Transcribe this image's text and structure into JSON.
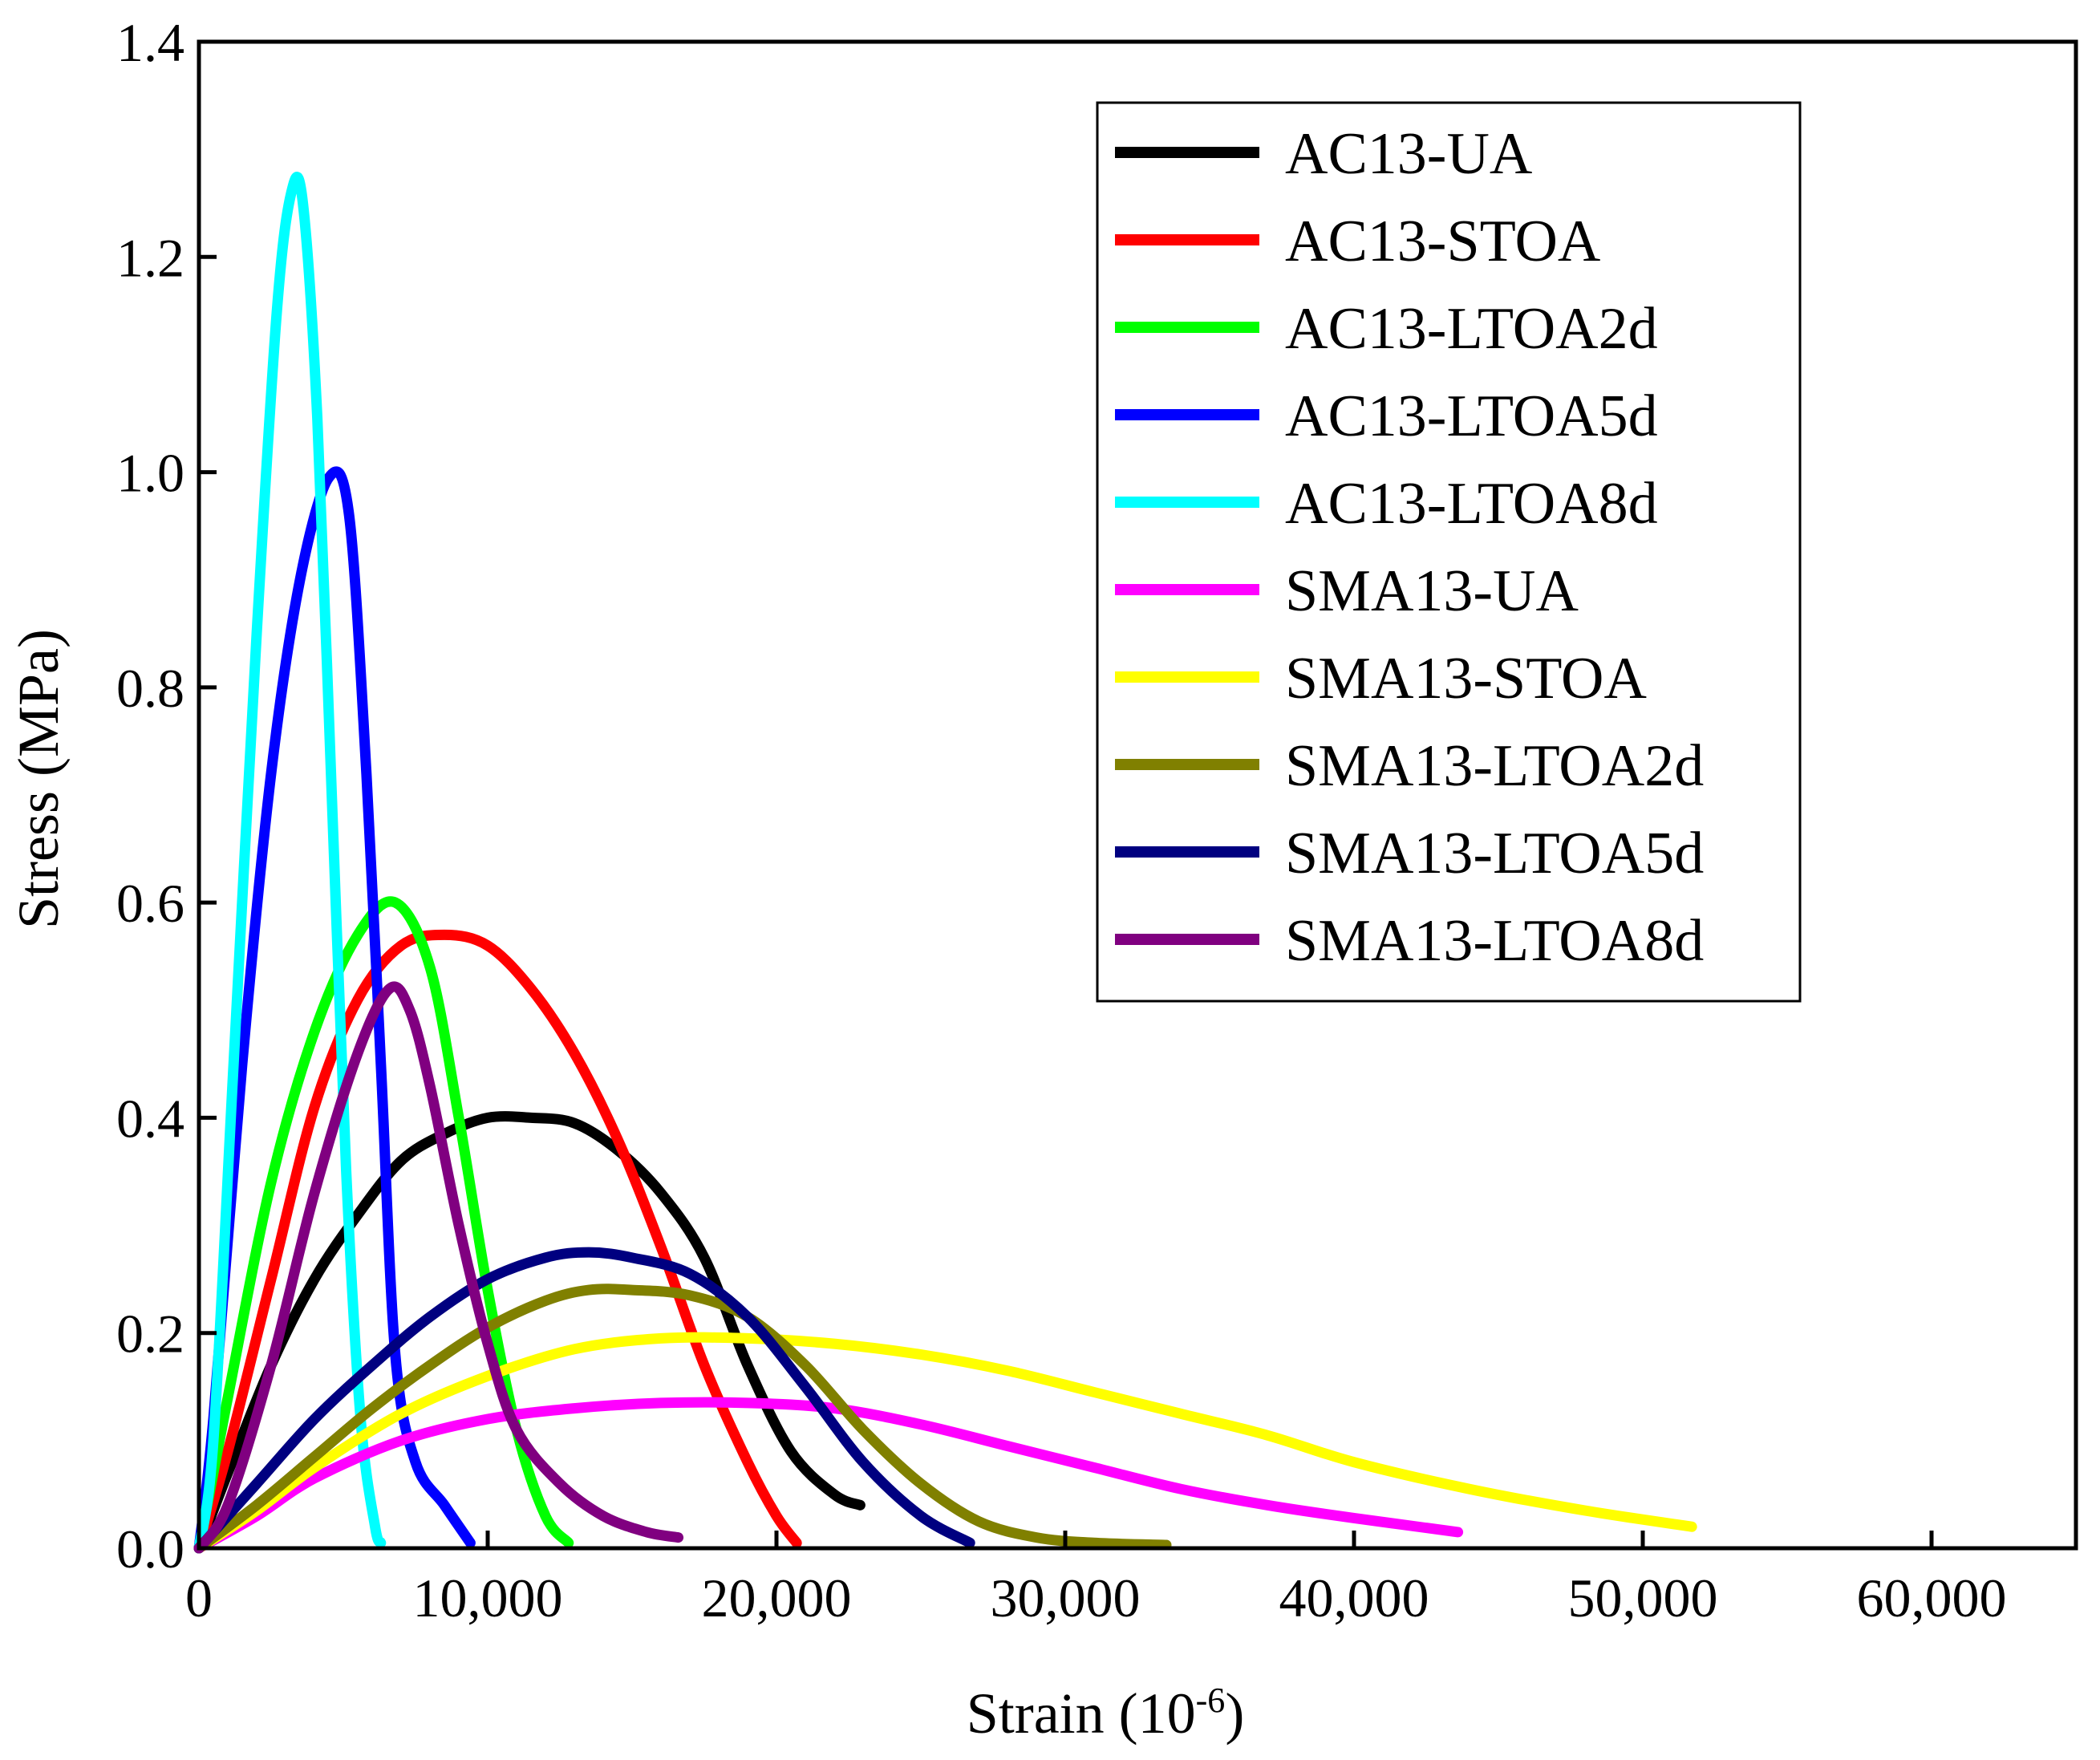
{
  "chart_data": {
    "type": "line",
    "title": "",
    "xlabel": "Strain (10",
    "xlabel_sup": "-6",
    "xlabel_end": ")",
    "ylabel": "Stress (MPa)",
    "xlim": [
      0,
      65000
    ],
    "ylim": [
      0,
      1.4
    ],
    "xticks": [
      0,
      10000,
      20000,
      30000,
      40000,
      50000,
      60000
    ],
    "xtick_labels": [
      "0",
      "10,000",
      "20,000",
      "30,000",
      "40,000",
      "50,000",
      "60,000"
    ],
    "yticks": [
      0,
      0.2,
      0.4,
      0.6,
      0.8,
      1.0,
      1.2,
      1.4
    ],
    "ytick_labels": [
      "0.0",
      "0.2",
      "0.4",
      "0.6",
      "0.8",
      "1.0",
      "1.2",
      "1.4"
    ],
    "grid": false,
    "legend_position": "top-right",
    "series": [
      {
        "name": "AC13-UA",
        "color": "#000000",
        "x": [
          0,
          1000,
          2500,
          4000,
          5500,
          7000,
          8500,
          10000,
          11500,
          13000,
          14500,
          16000,
          17500,
          19000,
          20500,
          22000,
          22900
        ],
        "y": [
          0,
          0.07,
          0.17,
          0.25,
          0.31,
          0.36,
          0.385,
          0.4,
          0.4,
          0.395,
          0.37,
          0.33,
          0.27,
          0.17,
          0.09,
          0.05,
          0.04
        ]
      },
      {
        "name": "AC13-STOA",
        "color": "#ff0000",
        "x": [
          0,
          1000,
          2500,
          4000,
          5500,
          7000,
          8500,
          10000,
          11500,
          13000,
          14500,
          16000,
          17500,
          19000,
          20000,
          20700
        ],
        "y": [
          0,
          0.09,
          0.25,
          0.41,
          0.51,
          0.56,
          0.57,
          0.56,
          0.52,
          0.46,
          0.38,
          0.28,
          0.17,
          0.08,
          0.03,
          0.005
        ]
      },
      {
        "name": "AC13-LTOA2d",
        "color": "#00ff00",
        "x": [
          0,
          1000,
          2500,
          4000,
          5500,
          6800,
          8000,
          9000,
          10000,
          11000,
          12000,
          12800
        ],
        "y": [
          0,
          0.14,
          0.34,
          0.48,
          0.57,
          0.6,
          0.54,
          0.4,
          0.24,
          0.11,
          0.03,
          0.005
        ]
      },
      {
        "name": "AC13-LTOA5d",
        "color": "#0000ff",
        "x": [
          0,
          500,
          1500,
          2500,
          3500,
          4500,
          5200,
          5800,
          6300,
          6800,
          7500,
          8500,
          9400
        ],
        "y": [
          0,
          0.12,
          0.45,
          0.72,
          0.9,
          0.995,
          0.96,
          0.72,
          0.45,
          0.18,
          0.08,
          0.04,
          0.005
        ]
      },
      {
        "name": "AC13-LTOA8d",
        "color": "#00ffff",
        "x": [
          0,
          500,
          1200,
          2000,
          2700,
          3200,
          3600,
          4100,
          4600,
          5100,
          5600,
          6100,
          6300
        ],
        "y": [
          0,
          0.1,
          0.45,
          0.85,
          1.15,
          1.26,
          1.25,
          1.05,
          0.7,
          0.35,
          0.12,
          0.02,
          0.005
        ]
      },
      {
        "name": "SMA13-UA",
        "color": "#ff00ff",
        "x": [
          0,
          2000,
          4000,
          7000,
          10000,
          13000,
          16000,
          19000,
          22000,
          25000,
          28000,
          31000,
          34000,
          37000,
          40000,
          43600
        ],
        "y": [
          0,
          0.03,
          0.065,
          0.1,
          0.12,
          0.13,
          0.135,
          0.135,
          0.13,
          0.115,
          0.095,
          0.075,
          0.055,
          0.04,
          0.028,
          0.015
        ]
      },
      {
        "name": "SMA13-STOA",
        "color": "#ffff00",
        "x": [
          0,
          2000,
          4000,
          7000,
          10000,
          13000,
          16000,
          19000,
          22000,
          25000,
          28000,
          31000,
          34000,
          37000,
          40000,
          44000,
          48000,
          51700
        ],
        "y": [
          0,
          0.035,
          0.075,
          0.125,
          0.16,
          0.185,
          0.195,
          0.195,
          0.19,
          0.18,
          0.165,
          0.145,
          0.125,
          0.105,
          0.08,
          0.055,
          0.035,
          0.02
        ]
      },
      {
        "name": "SMA13-LTOA2d",
        "color": "#808000",
        "x": [
          0,
          2000,
          4000,
          6000,
          8000,
          10000,
          12000,
          13500,
          15000,
          17000,
          19000,
          21000,
          23000,
          25000,
          27000,
          29000,
          31000,
          33500
        ],
        "y": [
          0,
          0.04,
          0.085,
          0.13,
          0.17,
          0.205,
          0.23,
          0.24,
          0.24,
          0.235,
          0.215,
          0.17,
          0.11,
          0.06,
          0.025,
          0.01,
          0.005,
          0.003
        ]
      },
      {
        "name": "SMA13-LTOA5d",
        "color": "#000080",
        "x": [
          0,
          2000,
          4000,
          6000,
          8000,
          10000,
          12000,
          13500,
          15000,
          17000,
          19000,
          21000,
          23000,
          25000,
          26700
        ],
        "y": [
          0,
          0.06,
          0.12,
          0.17,
          0.215,
          0.25,
          0.27,
          0.275,
          0.27,
          0.255,
          0.215,
          0.15,
          0.08,
          0.03,
          0.005
        ]
      },
      {
        "name": "SMA13-LTOA8d",
        "color": "#800080",
        "x": [
          0,
          1000,
          2500,
          4000,
          5500,
          6600,
          7300,
          8000,
          9000,
          10000,
          11000,
          12500,
          14000,
          15500,
          16600
        ],
        "y": [
          0,
          0.04,
          0.17,
          0.33,
          0.46,
          0.52,
          0.5,
          0.43,
          0.3,
          0.19,
          0.11,
          0.06,
          0.03,
          0.015,
          0.01
        ]
      }
    ]
  }
}
